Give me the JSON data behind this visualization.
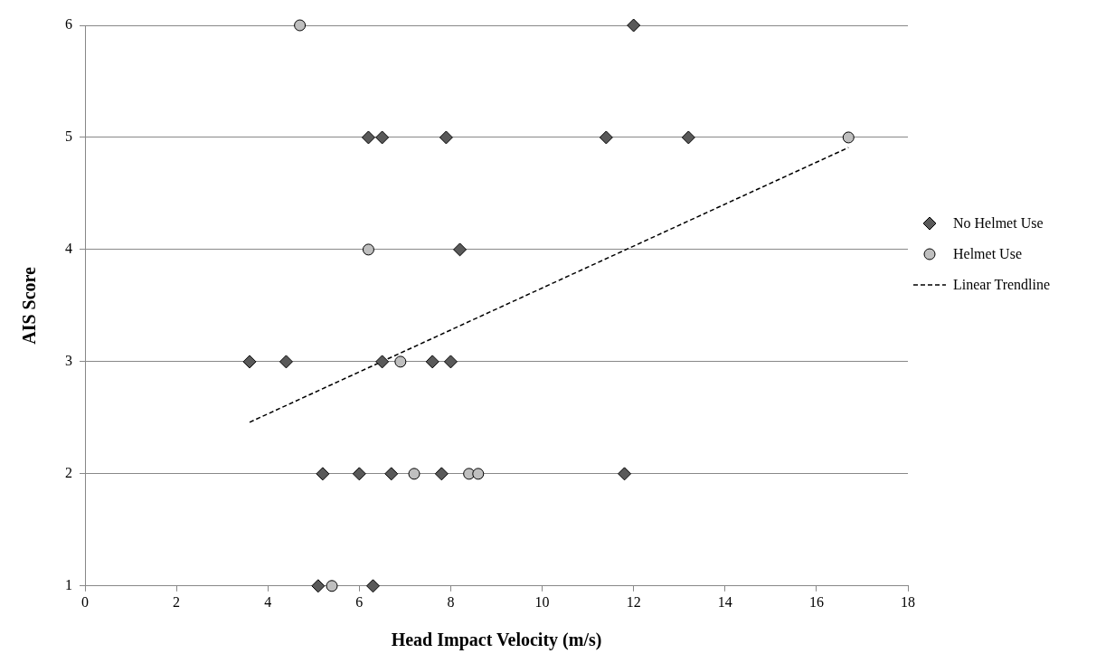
{
  "chart_data": {
    "type": "scatter",
    "xlabel": "Head Impact Velocity (m/s)",
    "ylabel": "AIS Score",
    "xlim": [
      0,
      18
    ],
    "ylim": [
      1,
      6
    ],
    "xticks": [
      0,
      2,
      4,
      6,
      8,
      10,
      12,
      14,
      16,
      18
    ],
    "yticks": [
      1,
      2,
      3,
      4,
      5,
      6
    ],
    "grid": "y",
    "legend": "right",
    "series": [
      {
        "name": "No Helmet Use",
        "marker": "diamond",
        "color": "#595959",
        "x": [
          12.0,
          6.2,
          6.5,
          7.9,
          11.4,
          13.2,
          8.2,
          3.6,
          4.4,
          6.5,
          7.6,
          8.0,
          5.2,
          6.0,
          6.7,
          7.8,
          11.8,
          5.1,
          6.3
        ],
        "values": [
          6,
          5,
          5,
          5,
          5,
          5,
          4,
          3,
          3,
          3,
          3,
          3,
          2,
          2,
          2,
          2,
          2,
          1,
          1
        ]
      },
      {
        "name": "Helmet Use",
        "marker": "circle",
        "color": "#bfbfbf",
        "x": [
          4.7,
          16.7,
          6.2,
          6.9,
          7.2,
          8.4,
          8.6,
          5.4
        ],
        "values": [
          6,
          5,
          4,
          3,
          2,
          2,
          2,
          1
        ]
      },
      {
        "name": "Linear Trendline",
        "type": "line",
        "marker": "none",
        "line_style": "dashed",
        "color": "#000000",
        "x": [
          3.6,
          16.7
        ],
        "values": [
          2.46,
          4.91
        ]
      }
    ]
  }
}
